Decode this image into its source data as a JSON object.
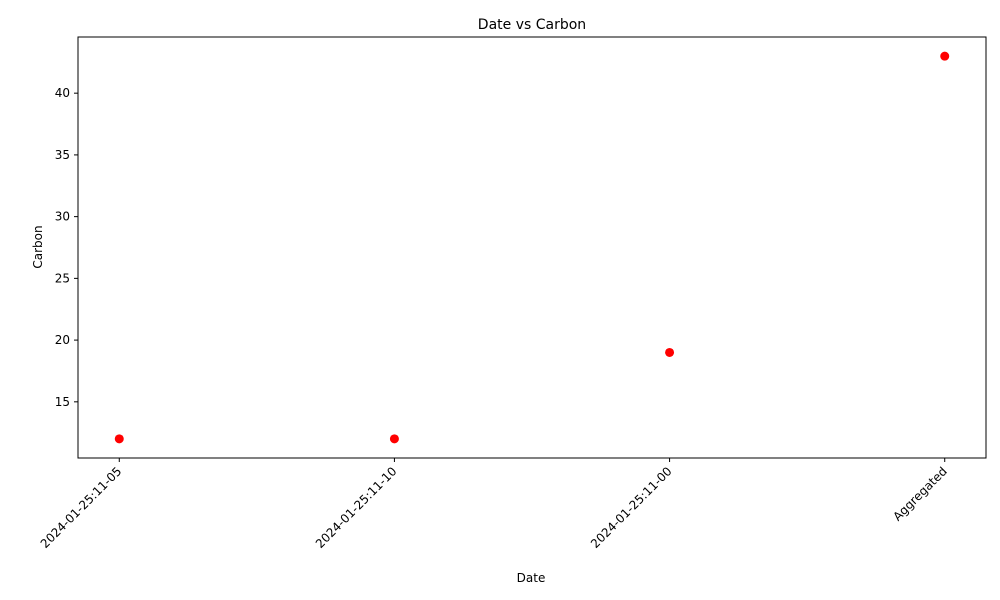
{
  "chart_data": {
    "type": "scatter",
    "title": "Date vs Carbon",
    "xlabel": "Date",
    "ylabel": "Carbon",
    "categories": [
      "2024-01-25:11-05",
      "2024-01-25:11-10",
      "2024-01-25:11-00",
      "Aggregated"
    ],
    "values": [
      12,
      12,
      19,
      43
    ],
    "marker_color": "#ff0000",
    "ylim": [
      10.45,
      44.55
    ],
    "yticks": [
      15,
      20,
      25,
      30,
      35,
      40
    ],
    "grid": false,
    "legend": "none"
  }
}
